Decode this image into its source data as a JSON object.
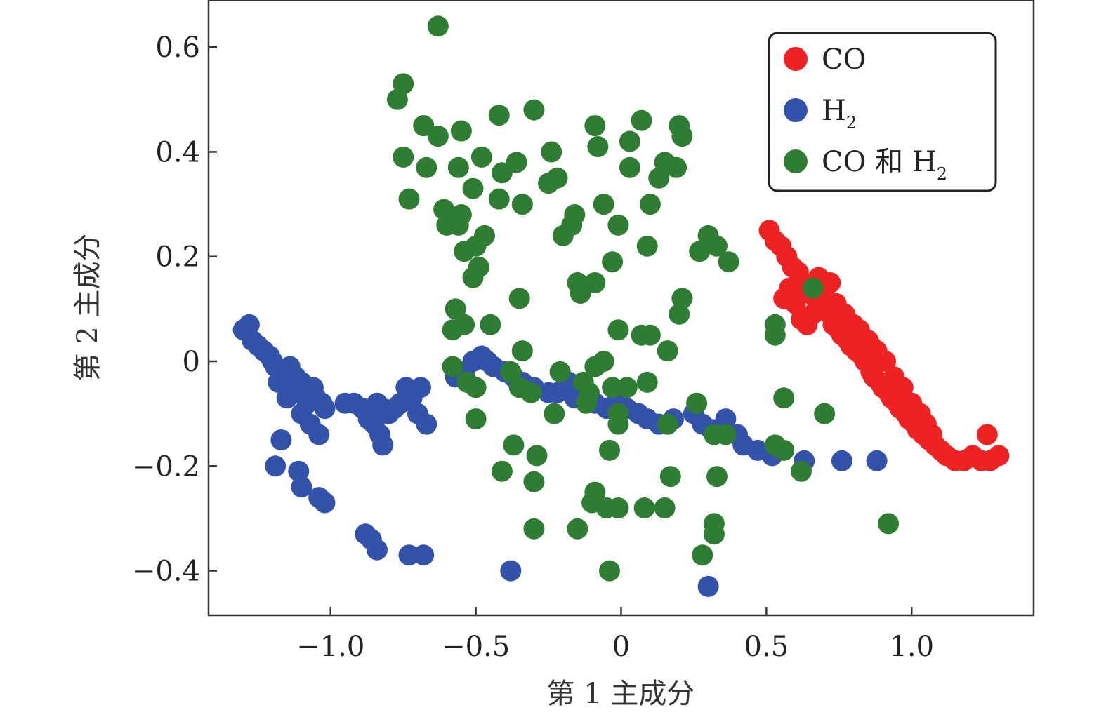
{
  "chart_data": {
    "type": "scatter",
    "xlabel": "第 1 主成分",
    "ylabel": "第 2 主成分",
    "xlim": [
      -1.42,
      1.42
    ],
    "ylim": [
      -0.485,
      0.69
    ],
    "xticks": [
      -1.0,
      -0.5,
      0,
      0.5,
      1.0
    ],
    "xtick_labels": [
      "−1.0",
      "−0.5",
      "0",
      "0.5",
      "1.0"
    ],
    "yticks": [
      -0.4,
      -0.2,
      0,
      0.2,
      0.4,
      0.6
    ],
    "ytick_labels": [
      "−0.4",
      "−0.2",
      "0",
      "0.2",
      "0.4",
      "0.6"
    ],
    "grid": false,
    "legend_position": "top-right",
    "series": [
      {
        "name": "CO",
        "legend_base": "CO",
        "legend_sub": "",
        "color": "#ee2222",
        "points": [
          [
            0.51,
            0.25
          ],
          [
            0.53,
            0.23
          ],
          [
            0.55,
            0.22
          ],
          [
            0.57,
            0.2
          ],
          [
            0.59,
            0.18
          ],
          [
            0.61,
            0.17
          ],
          [
            0.62,
            0.15
          ],
          [
            0.64,
            0.14
          ],
          [
            0.65,
            0.13
          ],
          [
            0.67,
            0.12
          ],
          [
            0.68,
            0.11
          ],
          [
            0.7,
            0.1
          ],
          [
            0.72,
            0.09
          ],
          [
            0.73,
            0.07
          ],
          [
            0.75,
            0.06
          ],
          [
            0.76,
            0.05
          ],
          [
            0.78,
            0.04
          ],
          [
            0.79,
            0.03
          ],
          [
            0.81,
            0.02
          ],
          [
            0.83,
            0.01
          ],
          [
            0.84,
            0.0
          ],
          [
            0.86,
            -0.02
          ],
          [
            0.87,
            -0.03
          ],
          [
            0.89,
            -0.04
          ],
          [
            0.9,
            -0.05
          ],
          [
            0.92,
            -0.06
          ],
          [
            0.93,
            -0.07
          ],
          [
            0.95,
            -0.08
          ],
          [
            0.96,
            -0.09
          ],
          [
            0.98,
            -0.1
          ],
          [
            0.99,
            -0.11
          ],
          [
            1.01,
            -0.12
          ],
          [
            1.02,
            -0.13
          ],
          [
            1.04,
            -0.14
          ],
          [
            1.06,
            -0.15
          ],
          [
            1.08,
            -0.16
          ],
          [
            1.1,
            -0.17
          ],
          [
            1.12,
            -0.18
          ],
          [
            1.15,
            -0.19
          ],
          [
            1.18,
            -0.19
          ],
          [
            1.21,
            -0.18
          ],
          [
            1.24,
            -0.19
          ],
          [
            1.27,
            -0.19
          ],
          [
            1.3,
            -0.18
          ],
          [
            1.26,
            -0.14
          ],
          [
            0.56,
            0.12
          ],
          [
            0.58,
            0.14
          ],
          [
            0.6,
            0.11
          ],
          [
            0.62,
            0.08
          ],
          [
            0.64,
            0.07
          ],
          [
            0.66,
            0.09
          ],
          [
            0.68,
            0.16
          ],
          [
            0.72,
            0.15
          ],
          [
            0.74,
            0.11
          ],
          [
            0.77,
            0.09
          ],
          [
            0.8,
            0.07
          ],
          [
            0.82,
            0.06
          ],
          [
            0.85,
            0.04
          ],
          [
            0.88,
            0.02
          ],
          [
            0.91,
            0.0
          ],
          [
            0.94,
            -0.03
          ],
          [
            0.97,
            -0.05
          ],
          [
            1.0,
            -0.08
          ],
          [
            1.03,
            -0.1
          ],
          [
            1.05,
            -0.12
          ],
          [
            1.07,
            -0.14
          ],
          [
            0.6,
            0.13
          ],
          [
            0.7,
            0.12
          ],
          [
            0.78,
            0.05
          ],
          [
            0.86,
            0.03
          ]
        ]
      },
      {
        "name": "H₂",
        "legend_base": "H",
        "legend_sub": "2",
        "color": "#3352aa",
        "points": [
          [
            -1.3,
            0.06
          ],
          [
            -1.28,
            0.07
          ],
          [
            -1.27,
            0.04
          ],
          [
            -1.25,
            0.03
          ],
          [
            -1.23,
            0.02
          ],
          [
            -1.21,
            0.01
          ],
          [
            -1.2,
            0.0
          ],
          [
            -1.19,
            -0.01
          ],
          [
            -1.17,
            -0.02
          ],
          [
            -1.16,
            -0.03
          ],
          [
            -1.14,
            -0.01
          ],
          [
            -1.12,
            -0.03
          ],
          [
            -1.1,
            -0.04
          ],
          [
            -1.08,
            -0.05
          ],
          [
            -1.06,
            -0.05
          ],
          [
            -1.05,
            -0.07
          ],
          [
            -1.03,
            -0.08
          ],
          [
            -1.08,
            -0.08
          ],
          [
            -1.11,
            -0.06
          ],
          [
            -1.13,
            -0.05
          ],
          [
            -1.18,
            -0.04
          ],
          [
            -1.15,
            -0.07
          ],
          [
            -1.1,
            -0.1
          ],
          [
            -1.07,
            -0.12
          ],
          [
            -1.04,
            -0.14
          ],
          [
            -1.02,
            -0.09
          ],
          [
            -0.95,
            -0.08
          ],
          [
            -0.92,
            -0.08
          ],
          [
            -0.89,
            -0.09
          ],
          [
            -0.86,
            -0.1
          ],
          [
            -0.84,
            -0.08
          ],
          [
            -0.82,
            -0.09
          ],
          [
            -0.8,
            -0.1
          ],
          [
            -0.78,
            -0.09
          ],
          [
            -0.76,
            -0.08
          ],
          [
            -0.74,
            -0.05
          ],
          [
            -0.72,
            -0.07
          ],
          [
            -0.69,
            -0.05
          ],
          [
            -0.7,
            -0.1
          ],
          [
            -0.67,
            -0.12
          ],
          [
            -0.85,
            -0.12
          ],
          [
            -0.83,
            -0.14
          ],
          [
            -0.82,
            -0.16
          ],
          [
            -0.87,
            -0.11
          ],
          [
            -1.17,
            -0.15
          ],
          [
            -1.19,
            -0.2
          ],
          [
            -1.11,
            -0.21
          ],
          [
            -1.1,
            -0.24
          ],
          [
            -1.04,
            -0.26
          ],
          [
            -1.02,
            -0.27
          ],
          [
            -0.88,
            -0.33
          ],
          [
            -0.86,
            -0.34
          ],
          [
            -0.84,
            -0.36
          ],
          [
            -0.73,
            -0.37
          ],
          [
            -0.68,
            -0.37
          ],
          [
            -0.38,
            -0.4
          ],
          [
            0.3,
            -0.43
          ],
          [
            -0.57,
            -0.03
          ],
          [
            -0.54,
            -0.02
          ],
          [
            -0.51,
            0.0
          ],
          [
            -0.48,
            0.01
          ],
          [
            -0.46,
            0.0
          ],
          [
            -0.44,
            -0.01
          ],
          [
            -0.4,
            -0.02
          ],
          [
            -0.37,
            -0.03
          ],
          [
            -0.34,
            -0.04
          ],
          [
            -0.3,
            -0.05
          ],
          [
            -0.25,
            -0.06
          ],
          [
            -0.22,
            -0.06
          ],
          [
            -0.19,
            -0.05
          ],
          [
            -0.16,
            -0.07
          ],
          [
            -0.12,
            -0.06
          ],
          [
            -0.09,
            -0.08
          ],
          [
            -0.05,
            -0.09
          ],
          [
            -0.02,
            -0.08
          ],
          [
            0.02,
            -0.09
          ],
          [
            0.06,
            -0.1
          ],
          [
            0.09,
            -0.11
          ],
          [
            0.13,
            -0.12
          ],
          [
            0.18,
            -0.11
          ],
          [
            0.25,
            -0.1
          ],
          [
            0.28,
            -0.12
          ],
          [
            0.31,
            -0.13
          ],
          [
            0.36,
            -0.11
          ],
          [
            0.4,
            -0.14
          ],
          [
            0.42,
            -0.16
          ],
          [
            0.47,
            -0.17
          ],
          [
            0.52,
            -0.18
          ],
          [
            0.63,
            -0.19
          ],
          [
            0.76,
            -0.19
          ],
          [
            0.88,
            -0.19
          ],
          [
            -0.18,
            -0.04
          ]
        ]
      },
      {
        "name": "CO 和 H₂",
        "legend_base": "CO 和 H",
        "legend_sub": "2",
        "color": "#2e7d32",
        "points": [
          [
            -0.63,
            0.64
          ],
          [
            -0.75,
            0.53
          ],
          [
            -0.77,
            0.5
          ],
          [
            -0.68,
            0.45
          ],
          [
            -0.63,
            0.43
          ],
          [
            -0.55,
            0.44
          ],
          [
            -0.42,
            0.47
          ],
          [
            -0.3,
            0.48
          ],
          [
            -0.09,
            0.45
          ],
          [
            0.07,
            0.46
          ],
          [
            0.2,
            0.45
          ],
          [
            0.21,
            0.43
          ],
          [
            -0.75,
            0.39
          ],
          [
            -0.67,
            0.37
          ],
          [
            -0.56,
            0.37
          ],
          [
            -0.48,
            0.39
          ],
          [
            -0.41,
            0.36
          ],
          [
            -0.36,
            0.38
          ],
          [
            -0.24,
            0.4
          ],
          [
            -0.25,
            0.34
          ],
          [
            -0.22,
            0.35
          ],
          [
            -0.08,
            0.41
          ],
          [
            0.03,
            0.42
          ],
          [
            0.03,
            0.37
          ],
          [
            0.13,
            0.35
          ],
          [
            0.15,
            0.38
          ],
          [
            0.19,
            0.37
          ],
          [
            -0.73,
            0.31
          ],
          [
            -0.61,
            0.29
          ],
          [
            -0.55,
            0.28
          ],
          [
            -0.51,
            0.33
          ],
          [
            -0.42,
            0.31
          ],
          [
            -0.34,
            0.3
          ],
          [
            -0.2,
            0.24
          ],
          [
            -0.17,
            0.26
          ],
          [
            -0.16,
            0.28
          ],
          [
            -0.06,
            0.3
          ],
          [
            -0.01,
            0.26
          ],
          [
            0.1,
            0.3
          ],
          [
            0.09,
            0.22
          ],
          [
            -0.6,
            0.26
          ],
          [
            -0.56,
            0.26
          ],
          [
            -0.54,
            0.21
          ],
          [
            -0.5,
            0.22
          ],
          [
            -0.47,
            0.24
          ],
          [
            -0.49,
            0.18
          ],
          [
            -0.51,
            0.16
          ],
          [
            -0.15,
            0.15
          ],
          [
            -0.09,
            0.15
          ],
          [
            -0.14,
            0.13
          ],
          [
            -0.03,
            0.19
          ],
          [
            0.27,
            0.21
          ],
          [
            0.3,
            0.24
          ],
          [
            0.33,
            0.22
          ],
          [
            0.37,
            0.19
          ],
          [
            -0.57,
            0.1
          ],
          [
            -0.58,
            0.06
          ],
          [
            -0.54,
            0.07
          ],
          [
            -0.45,
            0.07
          ],
          [
            -0.35,
            0.12
          ],
          [
            -0.34,
            0.02
          ],
          [
            0.21,
            0.12
          ],
          [
            0.2,
            0.09
          ],
          [
            0.53,
            0.07
          ],
          [
            0.53,
            0.05
          ],
          [
            0.66,
            0.14
          ],
          [
            -0.01,
            0.06
          ],
          [
            0.07,
            0.05
          ],
          [
            0.1,
            0.05
          ],
          [
            0.16,
            0.02
          ],
          [
            -0.58,
            -0.01
          ],
          [
            -0.53,
            -0.04
          ],
          [
            -0.5,
            -0.05
          ],
          [
            -0.38,
            -0.02
          ],
          [
            -0.35,
            -0.05
          ],
          [
            -0.31,
            -0.06
          ],
          [
            -0.21,
            -0.02
          ],
          [
            -0.13,
            -0.04
          ],
          [
            -0.11,
            -0.06
          ],
          [
            -0.09,
            -0.01
          ],
          [
            -0.06,
            0.0
          ],
          [
            -0.03,
            -0.05
          ],
          [
            0.02,
            -0.05
          ],
          [
            0.09,
            -0.04
          ],
          [
            -0.12,
            -0.08
          ],
          [
            -0.23,
            -0.1
          ],
          [
            -0.5,
            -0.11
          ],
          [
            -0.01,
            -0.1
          ],
          [
            -0.01,
            -0.12
          ],
          [
            0.16,
            -0.12
          ],
          [
            0.26,
            -0.08
          ],
          [
            0.32,
            -0.14
          ],
          [
            0.36,
            -0.14
          ],
          [
            0.53,
            -0.16
          ],
          [
            0.56,
            -0.17
          ],
          [
            0.56,
            -0.07
          ],
          [
            0.7,
            -0.1
          ],
          [
            0.62,
            -0.21
          ],
          [
            -0.37,
            -0.16
          ],
          [
            -0.29,
            -0.18
          ],
          [
            -0.41,
            -0.21
          ],
          [
            -0.3,
            -0.23
          ],
          [
            -0.04,
            -0.17
          ],
          [
            0.17,
            -0.22
          ],
          [
            0.33,
            -0.22
          ],
          [
            -0.09,
            -0.25
          ],
          [
            -0.1,
            -0.27
          ],
          [
            -0.05,
            -0.28
          ],
          [
            -0.01,
            -0.28
          ],
          [
            0.08,
            -0.28
          ],
          [
            0.15,
            -0.28
          ],
          [
            -0.3,
            -0.32
          ],
          [
            -0.15,
            -0.32
          ],
          [
            0.32,
            -0.31
          ],
          [
            0.32,
            -0.33
          ],
          [
            0.28,
            -0.37
          ],
          [
            -0.04,
            -0.4
          ],
          [
            0.92,
            -0.31
          ]
        ]
      }
    ]
  }
}
